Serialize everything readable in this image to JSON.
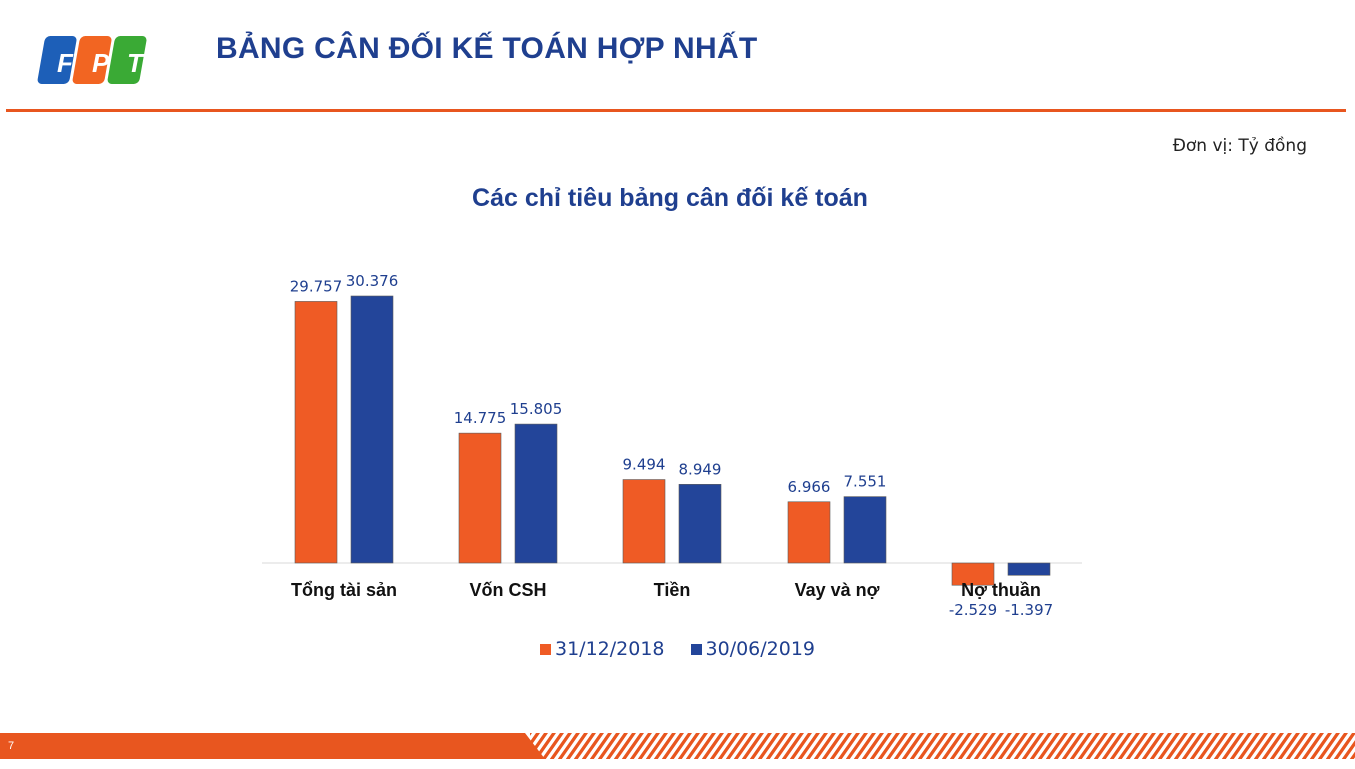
{
  "header": {
    "logo_letters": [
      "F",
      "P",
      "T"
    ],
    "title": "BẢNG CÂN ĐỐI KẾ TOÁN HỢP NHẤT"
  },
  "unit_note": "Đơn vị: Tỷ đồng",
  "colors": {
    "brand_blue": "#1f3f8f",
    "series_2018": "#ef5b25",
    "series_2019": "#23459a",
    "accent_orange": "#e8561f",
    "logo_blue": "#1d5fb8",
    "logo_orange": "#f26522",
    "logo_green": "#3aaa35"
  },
  "chart_data": {
    "type": "bar",
    "title": "Các chỉ tiêu bảng cân đối kế toán",
    "categories": [
      "Tổng tài sản",
      "Vốn CSH",
      "Tiền",
      "Vay và nợ",
      "Nợ thuần"
    ],
    "series": [
      {
        "name": "31/12/2018",
        "values": [
          29757,
          14775,
          9494,
          6966,
          -2529
        ],
        "labels": [
          "29.757",
          "14.775",
          "9.494",
          "6.966",
          "-2.529"
        ]
      },
      {
        "name": "30/06/2019",
        "values": [
          30376,
          15805,
          8949,
          7551,
          -1397
        ],
        "labels": [
          "30.376",
          "15.805",
          "8.949",
          "7.551",
          "-1.397"
        ]
      }
    ],
    "grid": false,
    "legend_position": "bottom"
  },
  "footer": {
    "page_number": "7"
  }
}
